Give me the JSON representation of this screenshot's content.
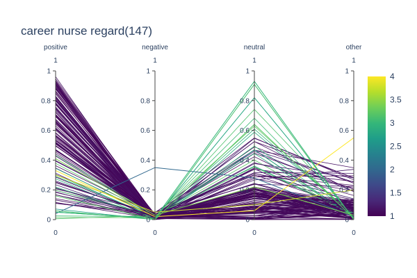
{
  "chart_data": {
    "type": "parallel_coordinates",
    "title": "career nurse regard(147)",
    "dimensions": [
      {
        "name": "positive",
        "range": [
          0,
          1
        ],
        "ticks": [
          0,
          0.2,
          0.4,
          0.6,
          0.8,
          1
        ],
        "range_labels": [
          "0",
          "1"
        ]
      },
      {
        "name": "negative",
        "range": [
          0,
          1
        ],
        "ticks": [
          0,
          0.2,
          0.4,
          0.6,
          0.8,
          1
        ],
        "range_labels": [
          "0",
          "1"
        ]
      },
      {
        "name": "neutral",
        "range": [
          0,
          1
        ],
        "ticks": [
          0,
          0.2,
          0.4,
          0.6,
          0.8,
          1
        ],
        "range_labels": [
          "0",
          "1"
        ]
      },
      {
        "name": "other",
        "range": [
          0,
          1
        ],
        "ticks": [
          0,
          0.2,
          0.4,
          0.6,
          0.8,
          1
        ],
        "range_labels": [
          "0",
          "1"
        ]
      }
    ],
    "colorbar": {
      "colorscale": "viridis",
      "range": [
        1,
        4
      ],
      "ticks": [
        "1",
        "1.5",
        "2",
        "2.5",
        "3",
        "3.5",
        "4"
      ],
      "colors": [
        "#440154",
        "#482878",
        "#3e4989",
        "#31688e",
        "#26828e",
        "#1f9e89",
        "#35b779",
        "#6ece58",
        "#b5de2b",
        "#fde725"
      ]
    },
    "highlighted_lines": [
      {
        "values": [
          0.04,
          0.35,
          0.28,
          0.02
        ],
        "color_value": 2.0
      },
      {
        "values": [
          0.33,
          0.02,
          0.06,
          0.55
        ],
        "color_value": 4.0
      },
      {
        "values": [
          0.05,
          0.01,
          0.82,
          0.01
        ],
        "color_value": 2.8
      },
      {
        "values": [
          0.05,
          0.01,
          0.93,
          0.0
        ],
        "color_value": 3.0
      },
      {
        "values": [
          0.06,
          0.0,
          0.91,
          0.0
        ],
        "color_value": 3.1
      },
      {
        "values": [
          0.16,
          0.0,
          0.64,
          0.01
        ],
        "color_value": 3.2
      },
      {
        "values": [
          0.41,
          0.03,
          0.22,
          0.03
        ],
        "color_value": 3.4
      },
      {
        "values": [
          0.3,
          0.05,
          0.1,
          0.2
        ],
        "color_value": 3.8
      }
    ]
  }
}
